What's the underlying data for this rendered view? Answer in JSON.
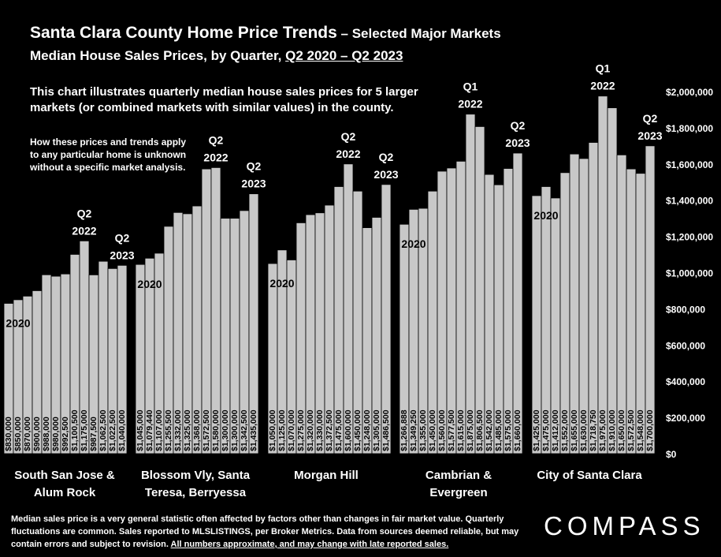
{
  "header": {
    "title": "Santa Clara County Home Price Trends",
    "title_suffix": " – Selected Major Markets",
    "subtitle_prefix": "Median House Sales Prices, by Quarter, ",
    "subtitle_range": "Q2 2020 – Q2 2023"
  },
  "description": "This chart illustrates quarterly median house sales prices for 5 larger markets (or combined markets with similar values) in the county.",
  "note": "How these prices and trends apply to any particular home is unknown without a specific market analysis.",
  "footer": {
    "text": "Median sales price is a very general statistic often affected by factors other than changes in fair market value. Quarterly fluctuations are common. Sales reported to MLSLISTINGS, per Broker Metrics. Data from sources deemed reliable, but may contain errors and subject to revision. ",
    "underlined": "All numbers approximate, and may change with late reported sales."
  },
  "logo": "COMPASS",
  "colors": {
    "background": "#000000",
    "bar": "#c8c8c8",
    "text": "#ffffff"
  },
  "chart_data": {
    "type": "bar",
    "ylim": [
      0,
      2000000
    ],
    "y_ticks": [
      "$0",
      "$200,000",
      "$400,000",
      "$600,000",
      "$800,000",
      "$1,000,000",
      "$1,200,000",
      "$1,400,000",
      "$1,600,000",
      "$1,800,000",
      "$2,000,000"
    ],
    "groups": [
      {
        "name": [
          "South San Jose &",
          "Alum Rock"
        ],
        "values": [
          830000,
          850000,
          870000,
          900000,
          988000,
          980000,
          992500,
          1100500,
          1175000,
          987500,
          1062500,
          1022500,
          1040000
        ],
        "labels": [
          "$830,000",
          "$850,000",
          "$870,000",
          "$900,000",
          "$988,000",
          "$980,000",
          "$992,500",
          "$1,100,500",
          "$1,175,000",
          "$987,500",
          "$1,062,500",
          "$1,022,500",
          "$1,040,000"
        ],
        "annotations": [
          {
            "index": 0,
            "text": [
              "2020"
            ]
          },
          {
            "index": 8,
            "text": [
              "Q2",
              "2022"
            ]
          },
          {
            "index": 12,
            "text": [
              "Q2",
              "2023"
            ]
          }
        ]
      },
      {
        "name": [
          "Blossom Vly, Santa",
          "Teresa, Berryessa"
        ],
        "values": [
          1045000,
          1079440,
          1107000,
          1255500,
          1332000,
          1325000,
          1368000,
          1572500,
          1580000,
          1300000,
          1300000,
          1342500,
          1435000
        ],
        "labels": [
          "$1,045,000",
          "$1,079,440",
          "$1,107,000",
          "$1,255,500",
          "$1,332,000",
          "$1,325,000",
          "$1,368,000",
          "$1,572,500",
          "$1,580,000",
          "$1,300,000",
          "$1,300,000",
          "$1,342,500",
          "$1,435,000"
        ],
        "annotations": [
          {
            "index": 0,
            "text": [
              "2020"
            ]
          },
          {
            "index": 8,
            "text": [
              "Q2",
              "2022"
            ]
          },
          {
            "index": 12,
            "text": [
              "Q2",
              "2023"
            ]
          }
        ]
      },
      {
        "name": [
          "Morgan Hill"
        ],
        "values": [
          1050000,
          1125000,
          1070000,
          1275000,
          1320000,
          1330000,
          1372500,
          1475000,
          1600000,
          1450000,
          1248000,
          1305000,
          1486500
        ],
        "labels": [
          "$1,050,000",
          "$1,125,000",
          "$1,070,000",
          "$1,275,000",
          "$1,320,000",
          "$1,330,000",
          "$1,372,500",
          "$1,475,000",
          "$1,600,000",
          "$1,450,000",
          "$1,248,000",
          "$1,305,000",
          "$1,486,500"
        ],
        "annotations": [
          {
            "index": 0,
            "text": [
              "2020"
            ]
          },
          {
            "index": 8,
            "text": [
              "Q2",
              "2022"
            ]
          },
          {
            "index": 12,
            "text": [
              "Q2",
              "2023"
            ]
          }
        ]
      },
      {
        "name": [
          "Cambrian &",
          "Evergreen"
        ],
        "values": [
          1266888,
          1349250,
          1355000,
          1450000,
          1560000,
          1577500,
          1615000,
          1875000,
          1806500,
          1542000,
          1485000,
          1575000,
          1660000
        ],
        "labels": [
          "$1,266,888",
          "$1,349,250",
          "$1,355,000",
          "$1,450,000",
          "$1,560,000",
          "$1,577,500",
          "$1,615,000",
          "$1,875,000",
          "$1,806,500",
          "$1,542,000",
          "$1,485,000",
          "$1,575,000",
          "$1,660,000"
        ],
        "annotations": [
          {
            "index": 0,
            "text": [
              "2020"
            ]
          },
          {
            "index": 7,
            "text": [
              "Q1",
              "2022"
            ]
          },
          {
            "index": 12,
            "text": [
              "Q2",
              "2023"
            ]
          }
        ]
      },
      {
        "name": [
          "City of Santa Clara"
        ],
        "values": [
          1425000,
          1475000,
          1412000,
          1552000,
          1655000,
          1630000,
          1718750,
          1975000,
          1910000,
          1650000,
          1572500,
          1548000,
          1700000
        ],
        "labels": [
          "$1,425,000",
          "$1,475,000",
          "$1,412,000",
          "$1,552,000",
          "$1,655,000",
          "$1,630,000",
          "$1,718,750",
          "$1,975,000",
          "$1,910,000",
          "$1,650,000",
          "$1,572,500",
          "$1,548,000",
          "$1,700,000"
        ],
        "annotations": [
          {
            "index": 0,
            "text": [
              "2020"
            ]
          },
          {
            "index": 7,
            "text": [
              "Q1",
              "2022"
            ]
          },
          {
            "index": 12,
            "text": [
              "Q2",
              "2023"
            ]
          }
        ]
      }
    ]
  }
}
